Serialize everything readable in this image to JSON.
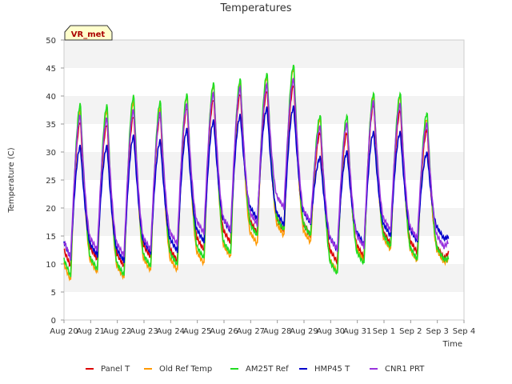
{
  "chart_data": {
    "type": "line",
    "title": "Temperatures",
    "xlabel": "Time",
    "ylabel": "Temperature (C)",
    "ylim": [
      0,
      50
    ],
    "yticks": [
      0,
      5,
      10,
      15,
      20,
      25,
      30,
      35,
      40,
      45,
      50
    ],
    "xlim": [
      "Aug 20",
      "Sep 4"
    ],
    "xticks": [
      "Aug 20",
      "Aug 21",
      "Aug 22",
      "Aug 23",
      "Aug 24",
      "Aug 25",
      "Aug 26",
      "Aug 27",
      "Aug 28",
      "Aug 29",
      "Aug 30",
      "Aug 31",
      "Sep 1",
      "Sep 2",
      "Sep 3",
      "Sep 4"
    ],
    "grid": "horizontal bands",
    "legend_position": "bottom",
    "annotation": "VR_met",
    "day_labels": [
      "Aug 20",
      "Aug 21",
      "Aug 22",
      "Aug 23",
      "Aug 24",
      "Aug 25",
      "Aug 26",
      "Aug 27",
      "Aug 28",
      "Aug 29",
      "Aug 30",
      "Aug 31",
      "Sep 1",
      "Sep 2",
      "Sep 3"
    ],
    "series": [
      {
        "name": "Panel T",
        "color": "#dd0000",
        "daily_min": [
          9.5,
          10.8,
          9.6,
          11.2,
          10.5,
          12.5,
          13.8,
          15.5,
          16.0,
          15.0,
          10.3,
          11.2,
          13.5,
          12.0,
          11.0
        ],
        "daily_max": [
          35.5,
          35.0,
          36.5,
          36.5,
          38.0,
          39.5,
          40.5,
          41.0,
          42.0,
          33.5,
          33.5,
          38.5,
          37.5,
          34.0,
          12.5
        ]
      },
      {
        "name": "Old Ref Temp",
        "color": "#ff9900",
        "daily_min": [
          7.0,
          8.5,
          7.5,
          8.8,
          8.8,
          10.0,
          11.2,
          13.5,
          15.0,
          13.8,
          8.5,
          10.5,
          12.5,
          10.5,
          10.3
        ],
        "daily_max": [
          37.5,
          37.5,
          39.0,
          38.0,
          40.0,
          42.0,
          42.5,
          43.5,
          45.0,
          36.0,
          35.5,
          40.0,
          40.0,
          36.0,
          11.0
        ]
      },
      {
        "name": "AM25T Ref",
        "color": "#22dd22",
        "daily_min": [
          7.8,
          9.0,
          8.0,
          9.5,
          9.8,
          11.0,
          11.8,
          15.0,
          16.0,
          15.0,
          8.2,
          10.0,
          13.0,
          10.8,
          10.8
        ],
        "daily_max": [
          38.5,
          38.3,
          40.0,
          39.0,
          40.3,
          42.3,
          43.0,
          44.0,
          45.5,
          36.5,
          36.5,
          40.5,
          40.5,
          37.0,
          11.0
        ]
      },
      {
        "name": "HMP45 T",
        "color": "#0000cc",
        "daily_min": [
          11.0,
          11.5,
          10.5,
          12.0,
          12.3,
          14.0,
          15.8,
          18.0,
          17.0,
          17.2,
          12.5,
          13.5,
          15.0,
          14.0,
          14.5
        ],
        "daily_max": [
          31.0,
          31.0,
          32.8,
          32.0,
          34.0,
          35.5,
          36.5,
          37.8,
          38.0,
          29.0,
          30.0,
          33.5,
          33.5,
          29.8,
          15.0
        ]
      },
      {
        "name": "CNR1 PRT",
        "color": "#9933dd",
        "daily_min": [
          11.0,
          12.5,
          11.5,
          12.5,
          13.5,
          15.5,
          16.0,
          17.0,
          20.0,
          17.5,
          12.5,
          13.0,
          16.0,
          14.5,
          13.0
        ],
        "daily_max": [
          36.5,
          36.0,
          37.5,
          37.0,
          38.5,
          40.5,
          41.5,
          42.0,
          43.0,
          34.5,
          35.0,
          39.0,
          38.5,
          35.0,
          14.5
        ]
      }
    ]
  }
}
